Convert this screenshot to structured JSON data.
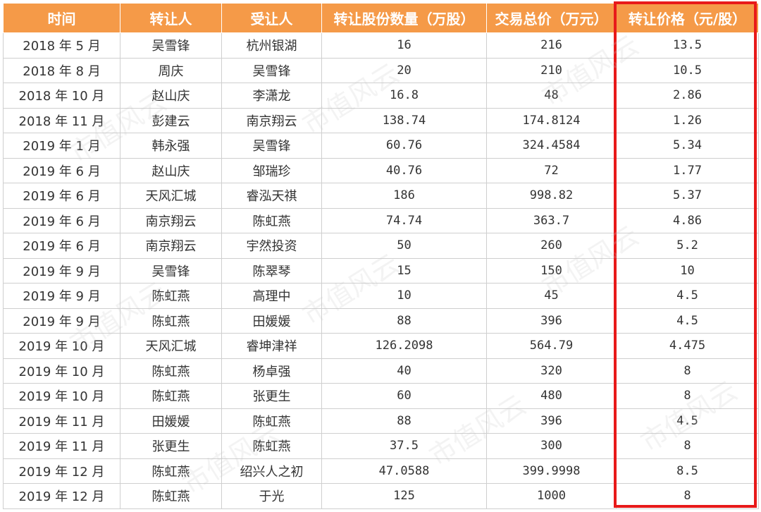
{
  "colors": {
    "header_bg": "#F59A48",
    "highlight": "#E81A1A"
  },
  "watermark": "市值风云",
  "table": {
    "headers": [
      "时间",
      "转让人",
      "受让人",
      "转让股份数量（万股）",
      "交易总价（万元）",
      "转让价格（元/股）"
    ],
    "rows": [
      [
        "2018 年 5 月",
        "吴雪锋",
        "杭州银湖",
        "16",
        "216",
        "13.5"
      ],
      [
        "2018 年 8 月",
        "周庆",
        "吴雪锋",
        "20",
        "210",
        "10.5"
      ],
      [
        "2018 年 10 月",
        "赵山庆",
        "李潇龙",
        "16.8",
        "48",
        "2.86"
      ],
      [
        "2018 年 11 月",
        "彭建云",
        "南京翔云",
        "138.74",
        "174.8124",
        "1.26"
      ],
      [
        "2019 年 1 月",
        "韩永强",
        "吴雪锋",
        "60.76",
        "324.4584",
        "5.34"
      ],
      [
        "2019 年 6 月",
        "赵山庆",
        "邹瑞珍",
        "40.76",
        "72",
        "1.77"
      ],
      [
        "2019 年 6 月",
        "天风汇城",
        "睿泓天祺",
        "186",
        "998.82",
        "5.37"
      ],
      [
        "2019 年 6 月",
        "南京翔云",
        "陈虹燕",
        "74.74",
        "363.7",
        "4.86"
      ],
      [
        "2019 年 6 月",
        "南京翔云",
        "宇然投资",
        "50",
        "260",
        "5.2"
      ],
      [
        "2019 年 9 月",
        "吴雪锋",
        "陈翠琴",
        "15",
        "150",
        "10"
      ],
      [
        "2019 年 9 月",
        "陈虹燕",
        "高理中",
        "10",
        "45",
        "4.5"
      ],
      [
        "2019 年 9 月",
        "陈虹燕",
        "田媛媛",
        "88",
        "396",
        "4.5"
      ],
      [
        "2019 年 10 月",
        "天风汇城",
        "睿坤津祥",
        "126.2098",
        "564.79",
        "4.475"
      ],
      [
        "2019 年 10 月",
        "陈虹燕",
        "杨卓强",
        "40",
        "320",
        "8"
      ],
      [
        "2019 年 10 月",
        "陈虹燕",
        "张更生",
        "60",
        "480",
        "8"
      ],
      [
        "2019 年 11 月",
        "田媛媛",
        "陈虹燕",
        "88",
        "396",
        "4.5"
      ],
      [
        "2019 年 11 月",
        "张更生",
        "陈虹燕",
        "37.5",
        "300",
        "8"
      ],
      [
        "2019 年 12 月",
        "陈虹燕",
        "绍兴人之初",
        "47.0588",
        "399.9998",
        "8.5"
      ],
      [
        "2019 年 12 月",
        "陈虹燕",
        "于光",
        "125",
        "1000",
        "8"
      ]
    ]
  }
}
